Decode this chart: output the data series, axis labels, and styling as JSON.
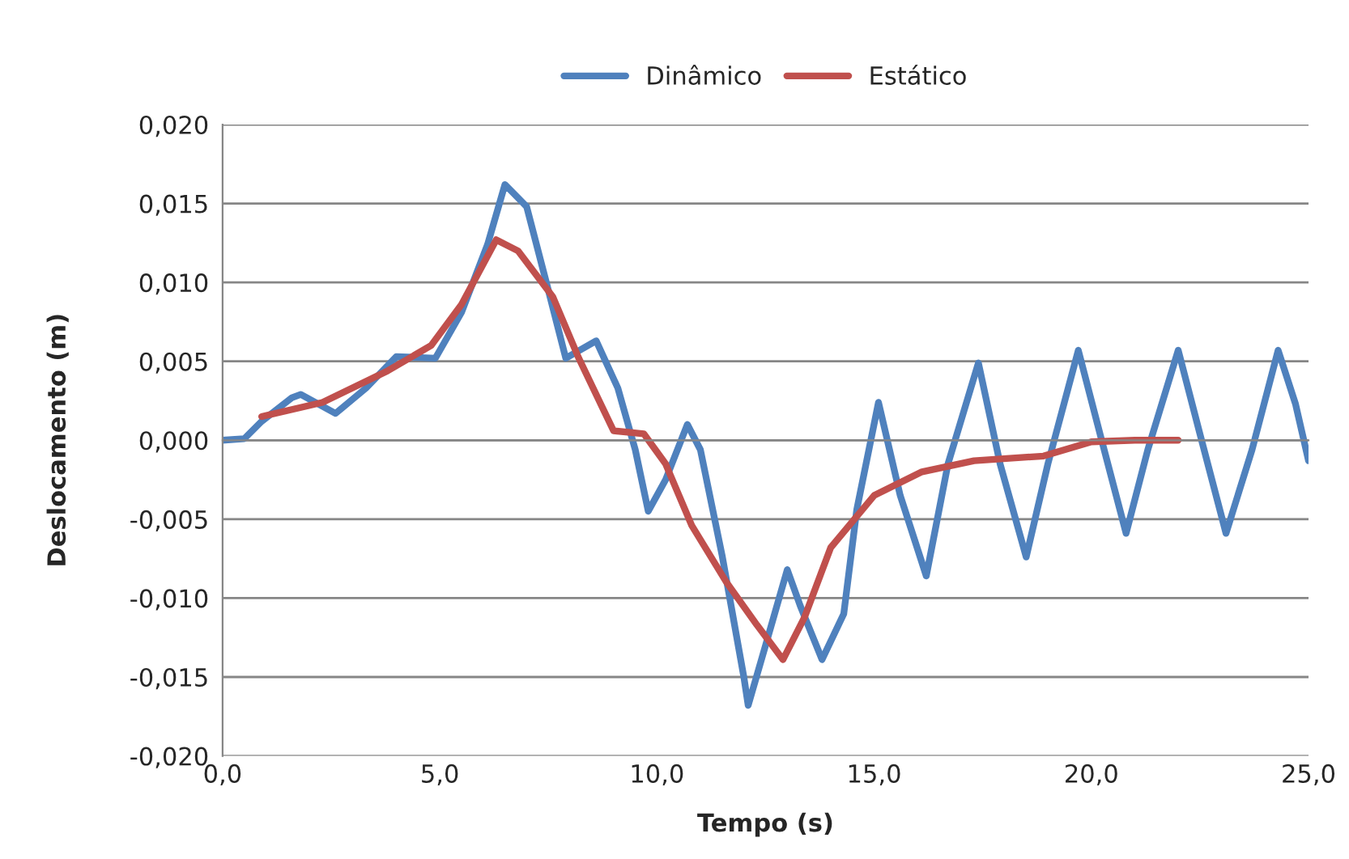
{
  "chart_data": {
    "type": "line",
    "xlabel": "Tempo (s)",
    "ylabel": "Deslocamento (m)",
    "xlim": [
      0,
      25
    ],
    "ylim": [
      -0.02,
      0.02
    ],
    "xticks": [
      {
        "value": 0,
        "label": "0,0"
      },
      {
        "value": 5,
        "label": "5,0"
      },
      {
        "value": 10,
        "label": "10,0"
      },
      {
        "value": 15,
        "label": "15,0"
      },
      {
        "value": 20,
        "label": "20,0"
      },
      {
        "value": 25,
        "label": "25,0"
      }
    ],
    "yticks": [
      {
        "value": -0.02,
        "label": "-0,020"
      },
      {
        "value": -0.015,
        "label": "-0,015"
      },
      {
        "value": -0.01,
        "label": "-0,010"
      },
      {
        "value": -0.005,
        "label": "-0,005"
      },
      {
        "value": 0,
        "label": "0,000"
      },
      {
        "value": 0.005,
        "label": "0,005"
      },
      {
        "value": 0.01,
        "label": "0,010"
      },
      {
        "value": 0.015,
        "label": "0,015"
      },
      {
        "value": 0.02,
        "label": "0,020"
      }
    ],
    "grid": "y",
    "legend": "top",
    "marker": "none",
    "line_style": "solid",
    "series": [
      {
        "name": "Dinâmico",
        "color": "#4f81bd",
        "x": [
          0,
          0.5,
          0.9,
          1.6,
          1.8,
          2.6,
          3.3,
          4.0,
          4.9,
          5.5,
          6.1,
          6.5,
          7.0,
          7.5,
          7.9,
          8.6,
          9.1,
          9.5,
          9.8,
          10.2,
          10.7,
          11.0,
          11.5,
          12.0,
          12.1,
          12.5,
          13.0,
          13.3,
          13.8,
          14.3,
          14.6,
          15.1,
          15.6,
          16.2,
          16.7,
          17.4,
          17.9,
          18.5,
          19.0,
          19.7,
          20.2,
          20.8,
          21.3,
          22.0,
          22.5,
          23.1,
          23.7,
          24.3,
          24.7,
          25.0
        ],
        "values": [
          0,
          0.0001,
          0.0012,
          0.0027,
          0.0029,
          0.0017,
          0.0033,
          0.0053,
          0.0052,
          0.0081,
          0.0124,
          0.0162,
          0.0148,
          0.0095,
          0.0052,
          0.0063,
          0.0033,
          -0.0006,
          -0.0045,
          -0.0025,
          0.001,
          -0.0006,
          -0.0073,
          -0.015,
          -0.0168,
          -0.013,
          -0.0082,
          -0.0105,
          -0.0139,
          -0.011,
          -0.0044,
          0.0024,
          -0.0035,
          -0.0086,
          -0.0015,
          0.0049,
          -0.0015,
          -0.0074,
          -0.0015,
          0.0057,
          0.0004,
          -0.0059,
          -0.0006,
          0.0057,
          0.0004,
          -0.0059,
          -0.0006,
          0.0057,
          0.0023,
          -0.0013
        ]
      },
      {
        "name": "Estático",
        "color": "#c0504d",
        "x": [
          0.9,
          2.3,
          3.8,
          4.8,
          5.5,
          6.3,
          6.8,
          7.6,
          8.2,
          9.0,
          9.7,
          10.2,
          10.8,
          11.6,
          12.3,
          12.9,
          13.4,
          14.0,
          15.0,
          16.1,
          17.3,
          18.9,
          20.0,
          21.0,
          22.0
        ],
        "values": [
          0.0015,
          0.0024,
          0.0044,
          0.006,
          0.0086,
          0.0127,
          0.012,
          0.0091,
          0.0052,
          0.0006,
          0.0004,
          -0.0015,
          -0.0054,
          -0.009,
          -0.0117,
          -0.0139,
          -0.0112,
          -0.0068,
          -0.0035,
          -0.002,
          -0.0013,
          -0.001,
          -0.0001,
          0,
          0
        ]
      }
    ]
  }
}
